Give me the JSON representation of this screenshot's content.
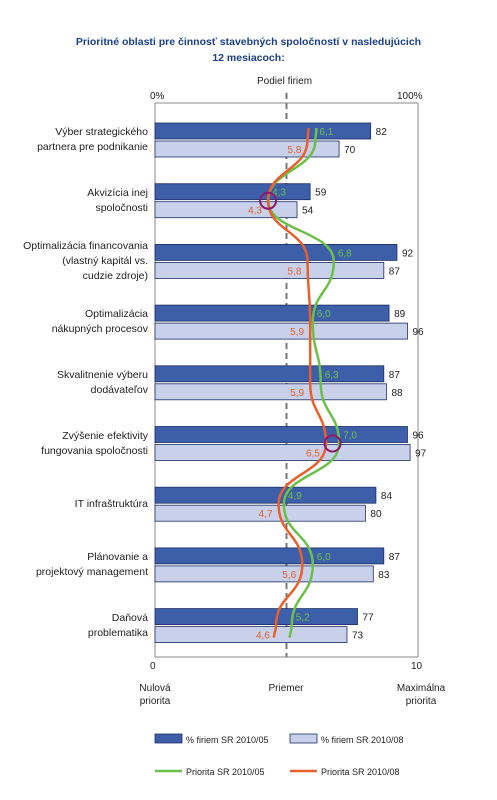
{
  "title_lines": [
    "Prioritné oblasti pre činnosť stavebných spoločností v nasledujúcich",
    "12 mesiacoch:"
  ],
  "top_axis": {
    "label": "Podiel firiem",
    "left": "0%",
    "right": "100%"
  },
  "bottom_axis": {
    "left_tick": "0",
    "right_tick": "10",
    "left_label": [
      "Nulová",
      "priorita"
    ],
    "mid_label": [
      "Priemer"
    ],
    "right_label": [
      "Maximálna",
      "priorita"
    ]
  },
  "colors": {
    "bar2010_05": "#3d5ea8",
    "bar2010_08": "#c8d0ea",
    "line2010_05": "#6cc04a",
    "line2010_08": "#e8602c",
    "dashed": "#777777",
    "circle": "#8b1a6b"
  },
  "chart_data": {
    "type": "bar",
    "orientation": "horizontal",
    "categories": [
      [
        "Výber strategického",
        "partnera pre podnikanie"
      ],
      [
        "Akvizícia inej",
        "spoločnosti"
      ],
      [
        "Optimalizácia financovania",
        "(vlastný kapitál vs.",
        "cudzie zdroje)"
      ],
      [
        "Optimalizácia",
        "nákupných procesov"
      ],
      [
        "Skvalitnenie výberu",
        "dodávateľov"
      ],
      [
        "Zvýšenie efektivity",
        "fungovania spoločnosti"
      ],
      [
        "IT infraštruktúra"
      ],
      [
        "Plánovanie a",
        "projektový management"
      ],
      [
        "Daňová",
        "problematika"
      ]
    ],
    "bar_range": [
      0,
      100
    ],
    "line_range": [
      0,
      10
    ],
    "average_line_percent": 50,
    "series": [
      {
        "name": "% firiem SR 2010/05",
        "kind": "bar",
        "values": [
          82,
          59,
          92,
          89,
          87,
          96,
          84,
          87,
          77
        ]
      },
      {
        "name": "% firiem SR 2010/08",
        "kind": "bar",
        "values": [
          70,
          54,
          87,
          96,
          88,
          97,
          80,
          83,
          73
        ]
      },
      {
        "name": "Priorita SR 2010/05",
        "kind": "line",
        "values": [
          6.1,
          4.3,
          6.8,
          6.0,
          6.3,
          7.0,
          4.9,
          6.0,
          5.2
        ],
        "labels": [
          "6,1",
          "4,3",
          "6,8",
          "6,0",
          "6,3",
          "7,0",
          "4,9",
          "6,0",
          "5,2"
        ]
      },
      {
        "name": "Priorita SR 2010/08",
        "kind": "line",
        "values": [
          5.8,
          4.3,
          5.8,
          5.9,
          5.9,
          6.5,
          4.7,
          5.6,
          4.6
        ],
        "labels": [
          "5,8",
          "4,3",
          "5,8",
          "5,9",
          "5,9",
          "6,5",
          "4,7",
          "5,6",
          "4,6"
        ]
      }
    ],
    "highlighted_categories": [
      1,
      5
    ]
  },
  "legend": [
    {
      "label": "% firiem SR 2010/05",
      "kind": "bar",
      "color": "#3d5ea8"
    },
    {
      "label": "% firiem SR 2010/08",
      "kind": "bar",
      "color": "#c8d0ea"
    },
    {
      "label": "Priorita SR 2010/05",
      "kind": "line",
      "color": "#6cc04a"
    },
    {
      "label": "Priorita SR 2010/08",
      "kind": "line",
      "color": "#e8602c"
    }
  ]
}
